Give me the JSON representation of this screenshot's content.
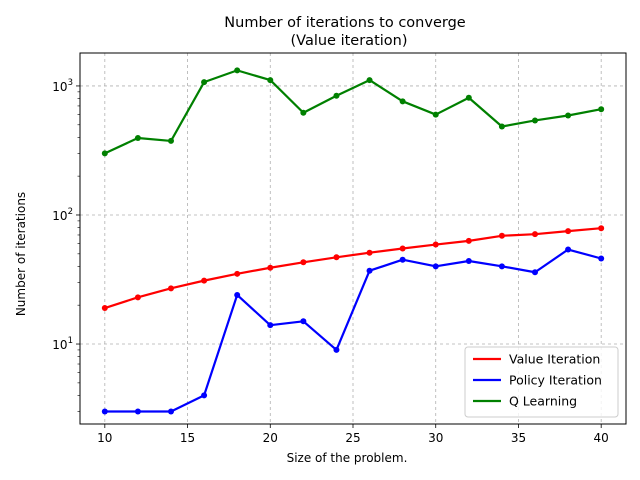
{
  "chart_data": {
    "type": "line",
    "title": "Number of iterations to converge",
    "subtitle": "(Value iteration)",
    "xlabel": "Size of the problem.",
    "ylabel": "Number of iterations",
    "xlim": [
      8.5,
      41.5
    ],
    "ylim": [
      2.4,
      1800
    ],
    "yscale": "log",
    "grid": true,
    "legend_position": "lower right",
    "x_ticks": [
      10,
      15,
      20,
      25,
      30,
      35,
      40
    ],
    "x_tick_labels": [
      "10",
      "15",
      "20",
      "25",
      "30",
      "35",
      "40"
    ],
    "y_ticks": [
      10,
      100,
      1000
    ],
    "y_tick_labels": [
      {
        "base": "10",
        "exp": "1"
      },
      {
        "base": "10",
        "exp": "2"
      },
      {
        "base": "10",
        "exp": "3"
      }
    ],
    "x": [
      10,
      12,
      14,
      16,
      18,
      20,
      22,
      24,
      26,
      28,
      30,
      32,
      34,
      36,
      38,
      40
    ],
    "series": [
      {
        "name": "Value Iteration",
        "color": "#ff0000",
        "values": [
          19,
          23,
          27,
          31,
          35,
          39,
          43,
          47,
          51,
          55,
          59,
          63,
          69,
          71,
          75,
          79
        ]
      },
      {
        "name": "Policy Iteration",
        "color": "#0000ff",
        "values": [
          3,
          3,
          3,
          4,
          24,
          14,
          15,
          9,
          37,
          45,
          40,
          44,
          40,
          36,
          54,
          46
        ]
      },
      {
        "name": "Q Learning",
        "color": "#008000",
        "values": [
          300,
          395,
          375,
          1070,
          1320,
          1110,
          620,
          840,
          1110,
          760,
          600,
          810,
          485,
          540,
          590,
          660
        ]
      }
    ]
  }
}
